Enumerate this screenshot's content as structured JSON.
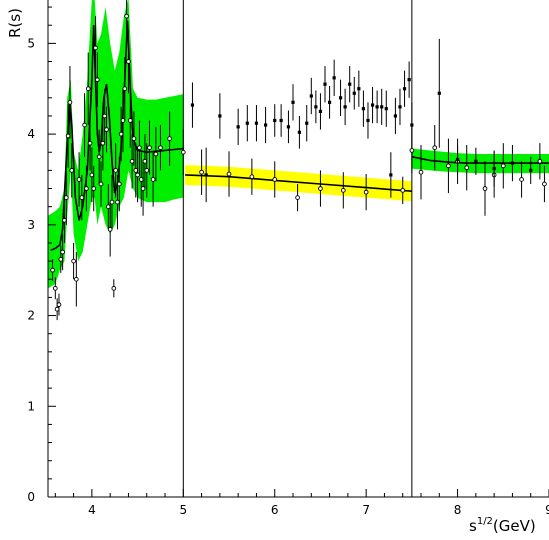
{
  "chart_data": {
    "type": "scatter",
    "title": "",
    "xlabel": "s",
    "xlabel_sup": "1/2",
    "xlabel_unit": "(GeV)",
    "ylabel": "R(s)",
    "xlim": [
      3.52,
      9.0
    ],
    "ylim": [
      0,
      5.5
    ],
    "x_ticks": [
      4,
      5,
      6,
      7,
      8,
      9
    ],
    "y_ticks": [
      0,
      1,
      2,
      3,
      4,
      5
    ],
    "grid": false,
    "legend": "none",
    "vertical_lines": [
      5.0,
      7.5
    ],
    "colors": {
      "band_green": "#00ee00",
      "band_yellow": "#ffff00",
      "marks": "#000000"
    },
    "bands": [
      {
        "color": "green",
        "x": [
          3.52,
          3.6,
          3.65,
          3.7,
          3.73,
          3.77,
          3.8,
          3.85,
          3.9,
          3.95,
          4.0,
          4.03,
          4.06,
          4.1,
          4.15,
          4.2,
          4.25,
          4.3,
          4.35,
          4.4,
          4.45,
          4.5,
          4.6,
          4.7,
          4.8,
          4.9,
          5.0
        ],
        "lower": [
          2.3,
          2.35,
          2.5,
          2.6,
          3.1,
          3.6,
          2.9,
          2.6,
          2.7,
          3.0,
          3.3,
          3.3,
          3.0,
          3.2,
          3.0,
          2.9,
          3.0,
          3.2,
          3.3,
          3.6,
          3.4,
          3.3,
          3.25,
          3.25,
          3.25,
          3.28,
          3.3
        ],
        "upper": [
          3.1,
          3.15,
          3.2,
          3.4,
          4.4,
          4.6,
          3.8,
          3.6,
          4.0,
          4.6,
          5.5,
          5.5,
          5.0,
          5.1,
          5.4,
          5.0,
          4.7,
          4.9,
          5.3,
          5.5,
          4.5,
          4.4,
          4.38,
          4.38,
          4.4,
          4.42,
          4.44
        ]
      },
      {
        "color": "yellow",
        "x": [
          5.02,
          5.5,
          6.0,
          6.5,
          7.0,
          7.5
        ],
        "lower": [
          3.44,
          3.42,
          3.38,
          3.34,
          3.3,
          3.26
        ],
        "upper": [
          3.66,
          3.64,
          3.6,
          3.56,
          3.52,
          3.48
        ]
      },
      {
        "color": "green",
        "x": [
          7.5,
          7.8,
          8.0,
          8.2,
          8.5,
          8.8,
          9.0
        ],
        "lower": [
          3.62,
          3.59,
          3.58,
          3.57,
          3.57,
          3.57,
          3.57
        ],
        "upper": [
          3.84,
          3.81,
          3.79,
          3.78,
          3.78,
          3.78,
          3.78
        ]
      }
    ],
    "fit_curves": [
      {
        "x": [
          3.55,
          3.6,
          3.65,
          3.68,
          3.7,
          3.73,
          3.76,
          3.78,
          3.82,
          3.86,
          3.9,
          3.95,
          4.0,
          4.02,
          4.04,
          4.06,
          4.08,
          4.1,
          4.13,
          4.16,
          4.19,
          4.22,
          4.25,
          4.28,
          4.32,
          4.36,
          4.39,
          4.42,
          4.45,
          4.5,
          4.6,
          4.7,
          4.8,
          4.9,
          5.0
        ],
        "y": [
          2.72,
          2.74,
          2.78,
          2.95,
          3.35,
          3.9,
          4.35,
          4.1,
          3.3,
          3.05,
          3.2,
          3.6,
          4.6,
          5.2,
          4.6,
          4.0,
          3.8,
          3.9,
          4.4,
          4.55,
          4.2,
          3.7,
          3.35,
          3.45,
          3.85,
          4.6,
          5.25,
          4.5,
          3.95,
          3.82,
          3.8,
          3.81,
          3.82,
          3.83,
          3.84
        ]
      },
      {
        "x": [
          5.02,
          5.5,
          6.0,
          6.5,
          7.0,
          7.5
        ],
        "y": [
          3.55,
          3.53,
          3.49,
          3.45,
          3.41,
          3.37
        ]
      },
      {
        "x": [
          7.5,
          7.7,
          7.9,
          8.1,
          8.3,
          8.5,
          8.8,
          9.0
        ],
        "y": [
          3.75,
          3.71,
          3.69,
          3.68,
          3.68,
          3.68,
          3.68,
          3.68
        ]
      }
    ],
    "series": [
      {
        "marker": "open-circle",
        "points": [
          [
            3.57,
            2.5,
            0.12
          ],
          [
            3.6,
            2.3,
            0.12
          ],
          [
            3.62,
            2.07,
            0.12
          ],
          [
            3.64,
            2.12,
            0.12
          ],
          [
            3.66,
            2.62,
            0.15
          ],
          [
            3.68,
            2.7,
            0.2
          ],
          [
            3.7,
            3.05,
            0.25
          ],
          [
            3.72,
            3.3,
            0.3
          ],
          [
            3.74,
            3.98,
            0.35
          ],
          [
            3.76,
            4.35,
            0.4
          ],
          [
            3.78,
            3.6,
            0.3
          ],
          [
            3.8,
            2.6,
            0.2
          ],
          [
            3.83,
            2.4,
            0.3
          ],
          [
            3.86,
            3.5,
            0.3
          ],
          [
            3.89,
            3.3,
            0.25
          ],
          [
            3.92,
            4.1,
            0.35
          ],
          [
            3.94,
            3.4,
            0.25
          ],
          [
            3.96,
            4.5,
            0.4
          ],
          [
            3.98,
            3.9,
            0.3
          ],
          [
            4.0,
            3.55,
            0.3
          ],
          [
            4.02,
            3.4,
            0.25
          ],
          [
            4.04,
            4.95,
            0.35
          ],
          [
            4.06,
            4.6,
            0.3
          ],
          [
            4.08,
            3.75,
            0.3
          ],
          [
            4.1,
            3.45,
            0.25
          ],
          [
            4.12,
            3.9,
            0.3
          ],
          [
            4.14,
            4.2,
            0.3
          ],
          [
            4.16,
            4.05,
            0.25
          ],
          [
            4.18,
            3.2,
            0.25
          ],
          [
            4.2,
            2.95,
            0.3
          ],
          [
            4.22,
            3.25,
            0.3
          ],
          [
            4.24,
            2.3,
            0.1
          ],
          [
            4.26,
            3.6,
            0.3
          ],
          [
            4.28,
            3.25,
            0.3
          ],
          [
            4.3,
            3.45,
            0.3
          ],
          [
            4.32,
            4.0,
            0.3
          ],
          [
            4.34,
            4.15,
            0.35
          ],
          [
            4.36,
            4.5,
            0.35
          ],
          [
            4.38,
            5.3,
            0.3
          ],
          [
            4.4,
            4.8,
            0.35
          ],
          [
            4.42,
            4.15,
            0.3
          ],
          [
            4.44,
            3.7,
            0.3
          ],
          [
            4.46,
            3.95,
            0.3
          ],
          [
            4.48,
            3.6,
            0.3
          ],
          [
            4.5,
            3.55,
            0.3
          ],
          [
            4.52,
            3.85,
            0.3
          ],
          [
            4.54,
            3.5,
            0.3
          ],
          [
            4.56,
            3.4,
            0.3
          ],
          [
            4.58,
            3.7,
            0.3
          ],
          [
            4.6,
            3.6,
            0.3
          ],
          [
            4.63,
            3.85,
            0.3
          ],
          [
            4.67,
            3.5,
            0.3
          ],
          [
            4.7,
            3.78,
            0.3
          ],
          [
            4.75,
            3.85,
            0.25
          ],
          [
            4.85,
            3.95,
            0.3
          ],
          [
            5.0,
            3.8,
            0.25
          ],
          [
            5.2,
            3.58,
            0.25
          ],
          [
            5.5,
            3.56,
            0.25
          ],
          [
            5.75,
            3.53,
            0.2
          ],
          [
            6.0,
            3.5,
            0.2
          ],
          [
            6.25,
            3.3,
            0.15
          ],
          [
            6.5,
            3.4,
            0.2
          ],
          [
            6.75,
            3.38,
            0.2
          ],
          [
            7.0,
            3.36,
            0.2
          ],
          [
            7.4,
            3.38,
            0.15
          ],
          [
            7.5,
            3.82,
            0.25
          ],
          [
            7.6,
            3.58,
            0.3
          ],
          [
            7.75,
            3.85,
            0.25
          ],
          [
            7.9,
            3.65,
            0.3
          ],
          [
            8.0,
            3.7,
            0.25
          ],
          [
            8.1,
            3.63,
            0.25
          ],
          [
            8.3,
            3.4,
            0.3
          ],
          [
            8.4,
            3.55,
            0.25
          ],
          [
            8.5,
            3.65,
            0.25
          ],
          [
            8.7,
            3.5,
            0.2
          ],
          [
            8.9,
            3.7,
            0.2
          ],
          [
            8.95,
            3.45,
            0.2
          ]
        ]
      },
      {
        "marker": "filled-square",
        "points": [
          [
            5.1,
            4.32,
            0.25
          ],
          [
            5.25,
            3.55,
            0.3
          ],
          [
            5.4,
            4.2,
            0.25
          ],
          [
            5.6,
            4.08,
            0.2
          ],
          [
            5.7,
            4.12,
            0.2
          ],
          [
            5.8,
            4.12,
            0.2
          ],
          [
            5.9,
            4.1,
            0.2
          ],
          [
            6.0,
            4.15,
            0.18
          ],
          [
            6.07,
            4.15,
            0.18
          ],
          [
            6.15,
            4.08,
            0.18
          ],
          [
            6.2,
            4.35,
            0.2
          ],
          [
            6.27,
            4.02,
            0.18
          ],
          [
            6.35,
            4.12,
            0.2
          ],
          [
            6.4,
            4.42,
            0.2
          ],
          [
            6.45,
            4.3,
            0.18
          ],
          [
            6.5,
            4.25,
            0.2
          ],
          [
            6.55,
            4.55,
            0.2
          ],
          [
            6.6,
            4.35,
            0.18
          ],
          [
            6.65,
            4.62,
            0.2
          ],
          [
            6.72,
            4.4,
            0.2
          ],
          [
            6.77,
            4.3,
            0.2
          ],
          [
            6.82,
            4.55,
            0.2
          ],
          [
            6.87,
            4.45,
            0.18
          ],
          [
            6.92,
            4.5,
            0.2
          ],
          [
            6.97,
            4.28,
            0.2
          ],
          [
            7.02,
            4.15,
            0.2
          ],
          [
            7.07,
            4.32,
            0.2
          ],
          [
            7.12,
            4.3,
            0.18
          ],
          [
            7.17,
            4.3,
            0.2
          ],
          [
            7.22,
            4.28,
            0.2
          ],
          [
            7.27,
            3.55,
            0.25
          ],
          [
            7.32,
            4.2,
            0.2
          ],
          [
            7.37,
            4.3,
            0.2
          ],
          [
            7.42,
            4.5,
            0.2
          ],
          [
            7.47,
            4.6,
            0.2
          ],
          [
            7.5,
            4.1,
            0.25
          ],
          [
            7.8,
            4.45,
            0.6
          ],
          [
            8.0,
            3.72,
            0.15
          ],
          [
            8.2,
            3.7,
            0.15
          ],
          [
            8.4,
            3.62,
            0.2
          ],
          [
            8.6,
            3.68,
            0.2
          ],
          [
            8.8,
            3.6,
            0.15
          ]
        ]
      }
    ]
  }
}
